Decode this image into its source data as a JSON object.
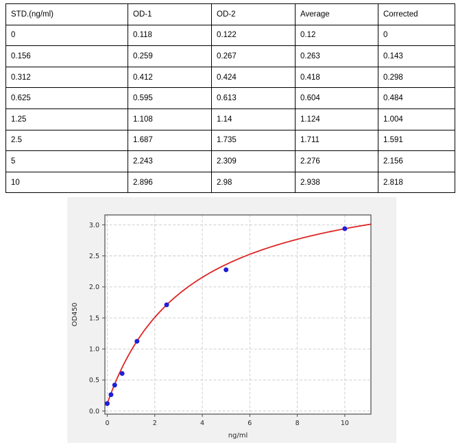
{
  "table": {
    "headers": [
      "STD.(ng/ml)",
      "OD-1",
      "OD-2",
      "Average",
      "Corrected"
    ],
    "rows": [
      [
        "0",
        "0.118",
        "0.122",
        "0.12",
        "0"
      ],
      [
        "0.156",
        "0.259",
        "0.267",
        "0.263",
        "0.143"
      ],
      [
        "0.312",
        "0.412",
        "0.424",
        "0.418",
        "0.298"
      ],
      [
        "0.625",
        "0.595",
        "0.613",
        "0.604",
        "0.484"
      ],
      [
        "1.25",
        "1.108",
        "1.14",
        "1.124",
        "1.004"
      ],
      [
        "2.5",
        "1.687",
        "1.735",
        "1.711",
        "1.591"
      ],
      [
        "5",
        "2.243",
        "2.309",
        "2.276",
        "2.156"
      ],
      [
        "10",
        "2.896",
        "2.98",
        "2.938",
        "2.818"
      ]
    ]
  },
  "chart_data": {
    "type": "scatter",
    "title": "",
    "xlabel": "ng/ml",
    "ylabel": "OD450",
    "x": [
      0,
      0.156,
      0.312,
      0.625,
      1.25,
      2.5,
      5,
      10
    ],
    "y": [
      0.12,
      0.263,
      0.418,
      0.604,
      1.124,
      1.711,
      2.276,
      2.938
    ],
    "xlim": [
      -0.1,
      11.1
    ],
    "ylim": [
      -0.05,
      3.16
    ],
    "xticks": [
      0,
      2,
      4,
      6,
      8,
      10
    ],
    "xtick_labels": [
      "0",
      "2",
      "4",
      "6",
      "8",
      "10"
    ],
    "yticks": [
      0.0,
      0.5,
      1.0,
      1.5,
      2.0,
      2.5,
      3.0
    ],
    "ytick_labels": [
      "0.0",
      "0.5",
      "1.0",
      "1.5",
      "2.0",
      "2.5",
      "3.0"
    ],
    "grid": true,
    "legend": "none",
    "fit_curve": {
      "formula": "y=(a*c+d*x)/(c+x)",
      "a": 0.12,
      "c": 3.461,
      "d": 3.913,
      "x_range": [
        0,
        11.1
      ]
    },
    "point_color": "#1f1fd6",
    "curve_color": "#dd2424",
    "grid_color": "#c8c8c8",
    "spine_color": "#4a4a4a",
    "text_color": "#262626",
    "figure_bg": "#f1f1f1",
    "plot_bg": "#ffffff"
  }
}
